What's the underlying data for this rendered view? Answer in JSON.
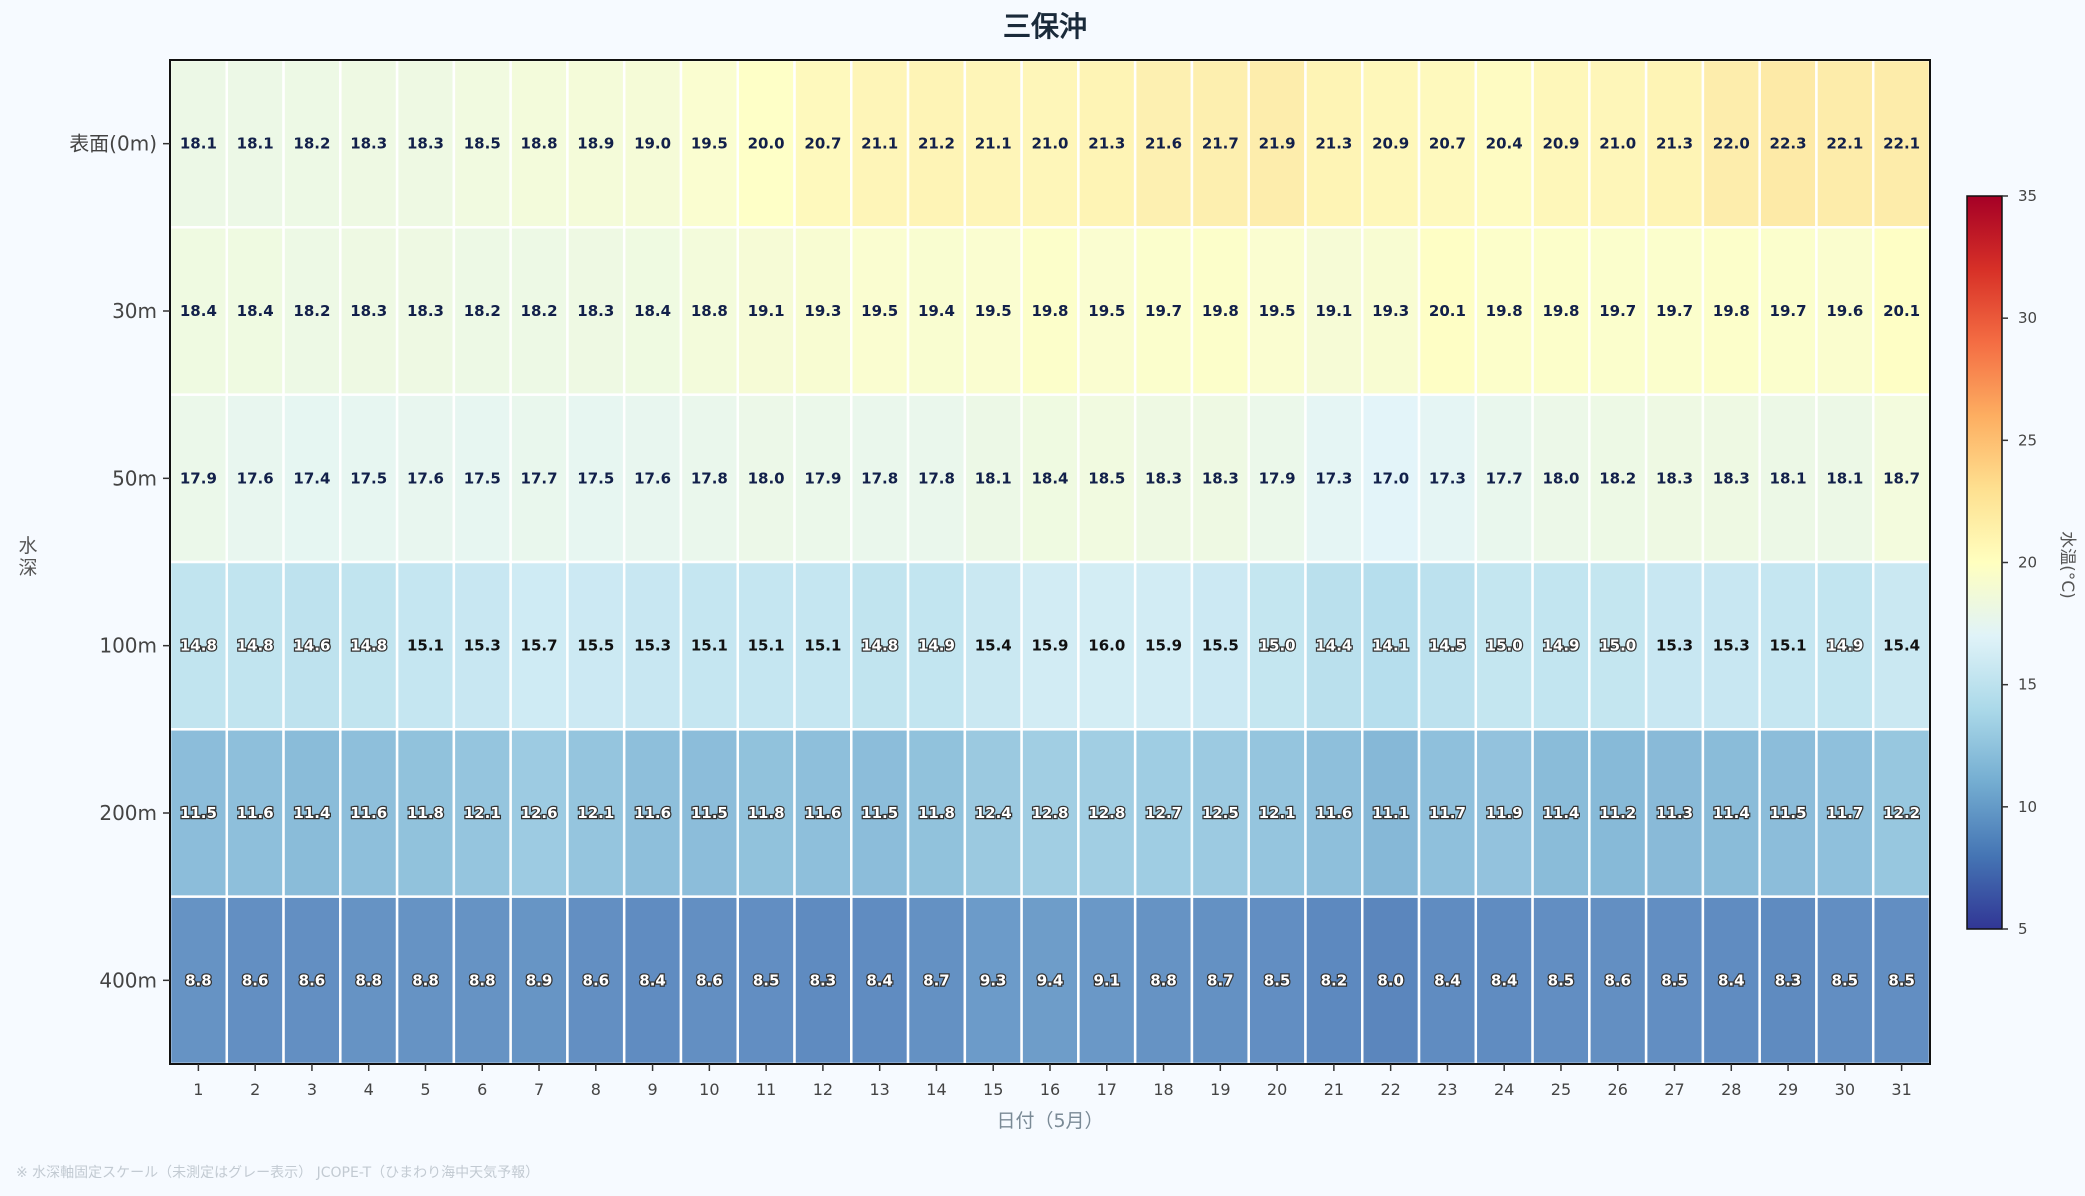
{
  "chart_data": {
    "type": "heatmap",
    "title": "三保沖",
    "xlabel": "日付（5月）",
    "ylabel": "水深",
    "colorbar_label": "水温(°C)",
    "colorbar_ticks": [
      5,
      10,
      15,
      20,
      25,
      30,
      35
    ],
    "vmin": 5,
    "vmax": 35,
    "colormap": "RdYlBu_r",
    "x": [
      1,
      2,
      3,
      4,
      5,
      6,
      7,
      8,
      9,
      10,
      11,
      12,
      13,
      14,
      15,
      16,
      17,
      18,
      19,
      20,
      21,
      22,
      23,
      24,
      25,
      26,
      27,
      28,
      29,
      30,
      31
    ],
    "y": [
      "表面(0m)",
      "30m",
      "50m",
      "100m",
      "200m",
      "400m"
    ],
    "values": [
      [
        18.1,
        18.1,
        18.2,
        18.3,
        18.3,
        18.5,
        18.8,
        18.9,
        19.0,
        19.5,
        20.0,
        20.7,
        21.1,
        21.2,
        21.1,
        21.0,
        21.3,
        21.6,
        21.7,
        21.9,
        21.3,
        20.9,
        20.7,
        20.4,
        20.9,
        21.0,
        21.3,
        22.0,
        22.3,
        22.1,
        22.1
      ],
      [
        18.4,
        18.4,
        18.2,
        18.3,
        18.3,
        18.2,
        18.2,
        18.3,
        18.4,
        18.8,
        19.1,
        19.3,
        19.5,
        19.4,
        19.5,
        19.8,
        19.5,
        19.7,
        19.8,
        19.5,
        19.1,
        19.3,
        20.1,
        19.8,
        19.8,
        19.7,
        19.7,
        19.8,
        19.7,
        19.6,
        20.1
      ],
      [
        17.9,
        17.6,
        17.4,
        17.5,
        17.6,
        17.5,
        17.7,
        17.5,
        17.6,
        17.8,
        18.0,
        17.9,
        17.8,
        17.8,
        18.1,
        18.4,
        18.5,
        18.3,
        18.3,
        17.9,
        17.3,
        17.0,
        17.3,
        17.7,
        18.0,
        18.2,
        18.3,
        18.3,
        18.1,
        18.1,
        18.7
      ],
      [
        14.8,
        14.8,
        14.6,
        14.8,
        15.1,
        15.3,
        15.7,
        15.5,
        15.3,
        15.1,
        15.1,
        15.1,
        14.8,
        14.9,
        15.4,
        15.9,
        16.0,
        15.9,
        15.5,
        15.0,
        14.4,
        14.1,
        14.5,
        15.0,
        14.9,
        15.0,
        15.3,
        15.3,
        15.1,
        14.9,
        15.4
      ],
      [
        11.5,
        11.6,
        11.4,
        11.6,
        11.8,
        12.1,
        12.6,
        12.1,
        11.6,
        11.5,
        11.8,
        11.6,
        11.5,
        11.8,
        12.4,
        12.8,
        12.8,
        12.7,
        12.5,
        12.1,
        11.6,
        11.1,
        11.7,
        11.9,
        11.4,
        11.2,
        11.3,
        11.4,
        11.5,
        11.7,
        12.2
      ],
      [
        8.8,
        8.6,
        8.6,
        8.8,
        8.8,
        8.8,
        8.9,
        8.6,
        8.4,
        8.6,
        8.5,
        8.3,
        8.4,
        8.7,
        9.3,
        9.4,
        9.1,
        8.8,
        8.7,
        8.5,
        8.2,
        8.0,
        8.4,
        8.4,
        8.5,
        8.6,
        8.5,
        8.4,
        8.3,
        8.5,
        8.5
      ]
    ]
  },
  "footnote": "※ 水深軸固定スケール（未測定はグレー表示） JCOPE-T（ひまわり海中天気予報）"
}
